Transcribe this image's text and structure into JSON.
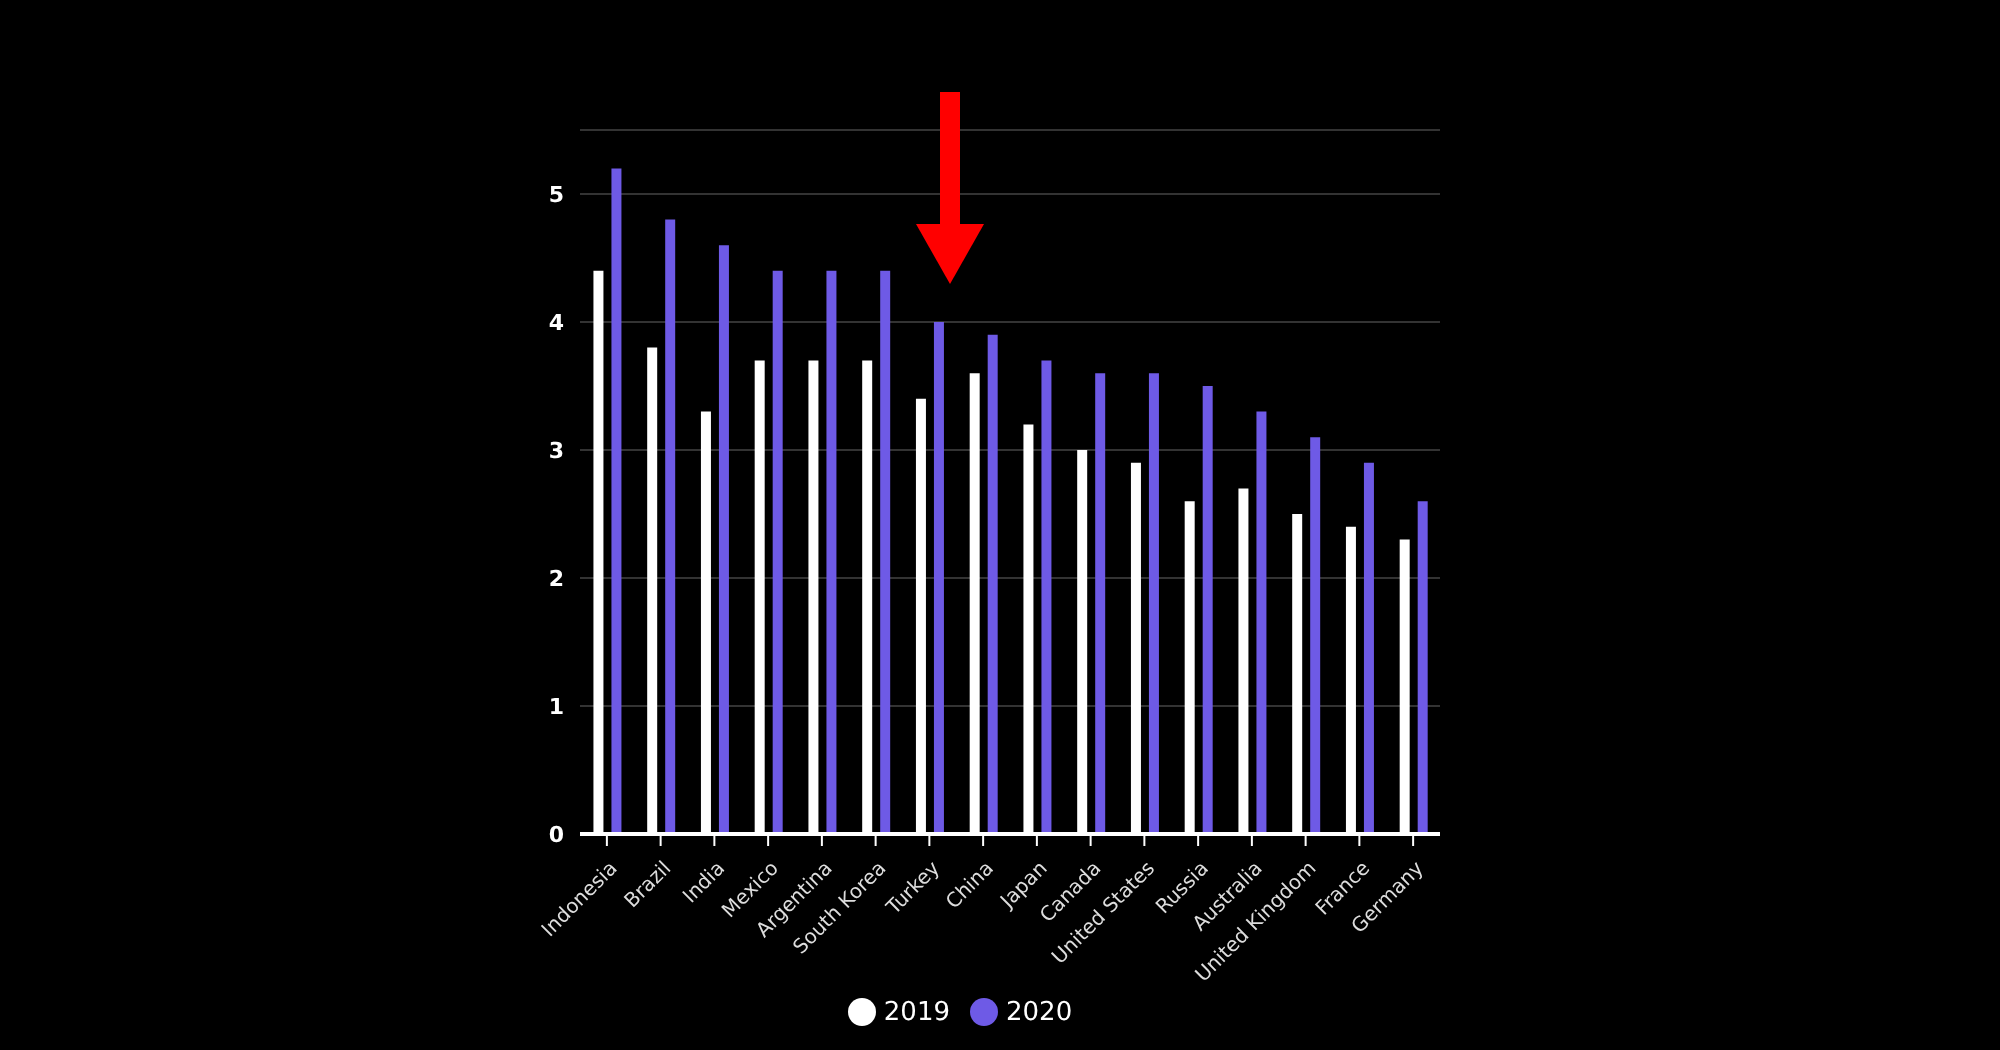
{
  "chart_data": {
    "type": "bar",
    "categories": [
      "Indonesia",
      "Brazil",
      "India",
      "Mexico",
      "Argentina",
      "South Korea",
      "Turkey",
      "China",
      "Japan",
      "Canada",
      "United States",
      "Russia",
      "Australia",
      "United Kingdom",
      "France",
      "Germany"
    ],
    "series": [
      {
        "name": "2019",
        "color": "#ffffff",
        "values": [
          4.4,
          3.8,
          3.3,
          3.7,
          3.7,
          3.7,
          3.4,
          3.6,
          3.2,
          3.0,
          2.9,
          2.6,
          2.7,
          2.5,
          2.4,
          2.3
        ]
      },
      {
        "name": "2020",
        "color": "#6e5ae6",
        "values": [
          5.2,
          4.8,
          4.6,
          4.4,
          4.4,
          4.4,
          4.0,
          3.9,
          3.7,
          3.6,
          3.6,
          3.5,
          3.3,
          3.1,
          2.9,
          2.6
        ]
      }
    ],
    "ylim": [
      0,
      5.5
    ],
    "yticks": [
      0,
      1,
      2,
      3,
      4,
      5
    ],
    "grid": "y",
    "legend": "bottom"
  }
}
